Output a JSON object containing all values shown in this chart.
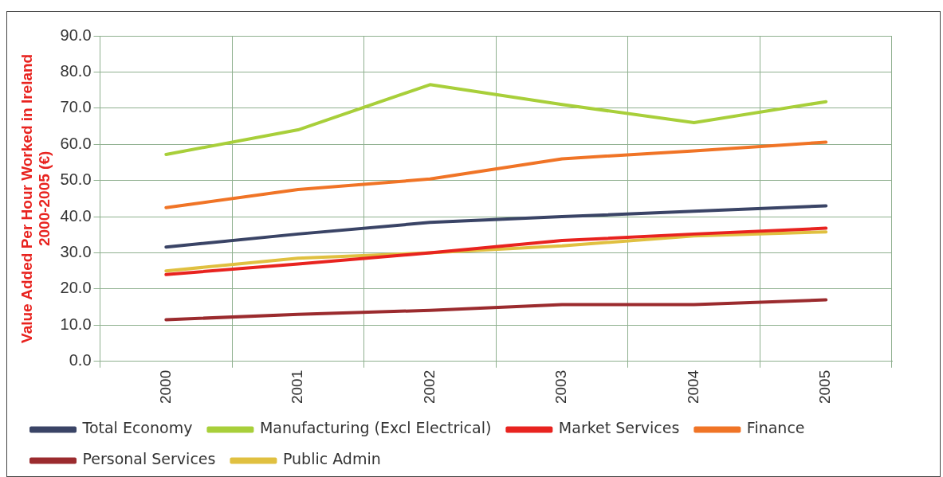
{
  "chart_data": {
    "type": "line",
    "ylabel": "Value Added Per Hour Worked in Ireland\n2000-2005 (€)",
    "categories": [
      "2000",
      "2001",
      "2002",
      "2003",
      "2004",
      "2005"
    ],
    "series": [
      {
        "name": "Total Economy",
        "color": "#3a4466",
        "values": [
          31.6,
          35.2,
          38.4,
          40.0,
          41.5,
          43.0
        ]
      },
      {
        "name": "Manufacturing (Excl Electrical)",
        "color": "#a8cf3a",
        "values": [
          57.2,
          64.0,
          76.5,
          71.0,
          66.0,
          71.8
        ]
      },
      {
        "name": "Market Services",
        "color": "#e8231f",
        "values": [
          24.0,
          26.9,
          30.0,
          33.4,
          35.2,
          36.8
        ]
      },
      {
        "name": "Finance",
        "color": "#f07426",
        "values": [
          42.5,
          47.5,
          50.4,
          56.0,
          58.2,
          60.6
        ]
      },
      {
        "name": "Personal Services",
        "color": "#9b2b2e",
        "values": [
          11.5,
          13.0,
          14.1,
          15.7,
          15.7,
          17.0
        ]
      },
      {
        "name": "Public Admin",
        "color": "#e0c040",
        "values": [
          25.0,
          28.5,
          30.0,
          31.9,
          34.7,
          35.8
        ]
      }
    ],
    "ylim": [
      0,
      90
    ],
    "yticks": [
      {
        "value": 0,
        "label": "0.0"
      },
      {
        "value": 10,
        "label": "10.0"
      },
      {
        "value": 20,
        "label": "20.0"
      },
      {
        "value": 30,
        "label": "30.0"
      },
      {
        "value": 40,
        "label": "40.0"
      },
      {
        "value": 50,
        "label": "50.0"
      },
      {
        "value": 60,
        "label": "60.0"
      },
      {
        "value": 70,
        "label": "70.0"
      },
      {
        "value": 80,
        "label": "80.0"
      },
      {
        "value": 90,
        "label": "90.0"
      }
    ],
    "grid": true,
    "legend": "bottom",
    "marker": "none",
    "line_style": "solid"
  }
}
